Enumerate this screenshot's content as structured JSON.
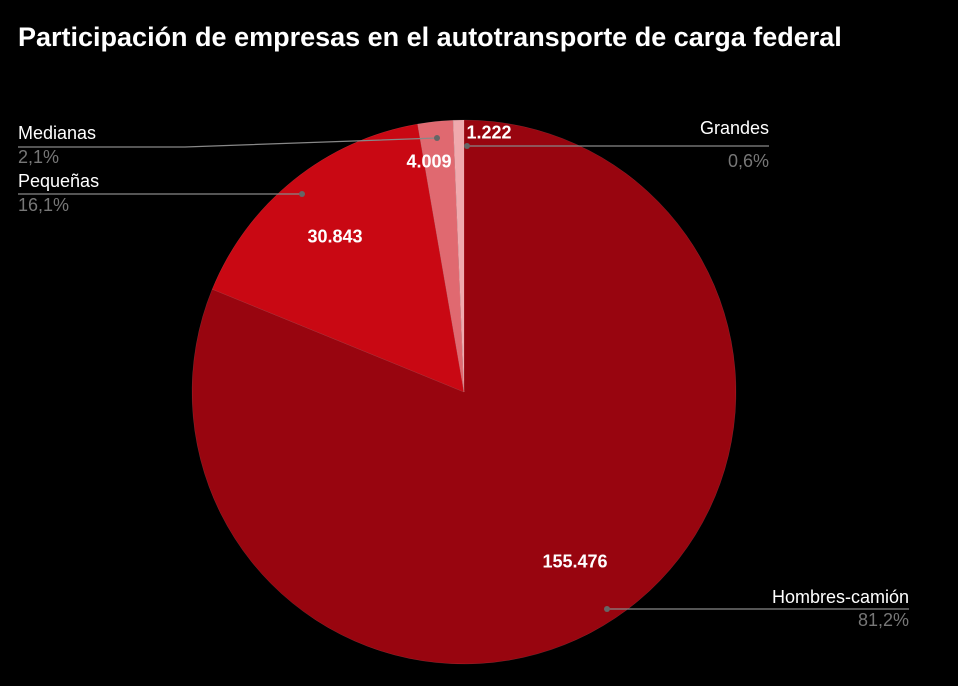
{
  "chart_data": {
    "type": "pie",
    "title": "Participación de empresas en el autotransporte de carga federal",
    "start_angle": "12 o'clock, clockwise",
    "slices": [
      {
        "name": "Hombres-camión",
        "value": 155476,
        "value_label": "155.476",
        "percent_label": "81,2%",
        "color": "#98050f"
      },
      {
        "name": "Pequeñas",
        "value": 30843,
        "value_label": "30.843",
        "percent_label": "16,1%",
        "color": "#c90813"
      },
      {
        "name": "Medianas",
        "value": 4009,
        "value_label": "4.009",
        "percent_label": "2,1%",
        "color": "#e06970"
      },
      {
        "name": "Grandes",
        "value": 1222,
        "value_label": "1.222",
        "percent_label": "0,6%",
        "color": "#f0a9ad"
      }
    ],
    "legend": "none (leader-line labels)"
  }
}
